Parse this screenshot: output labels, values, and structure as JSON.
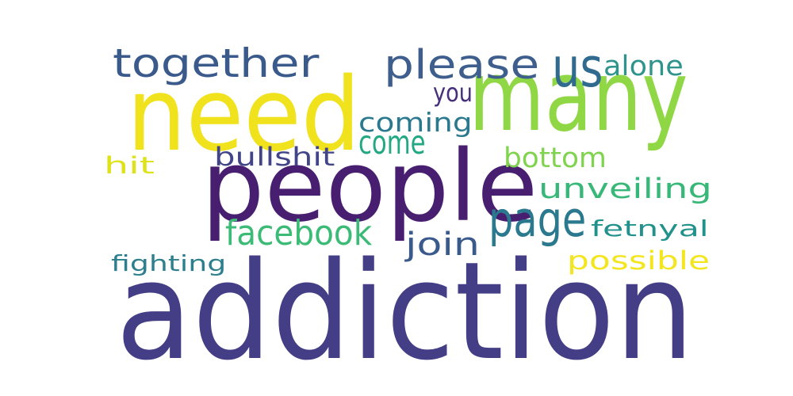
{
  "words": [
    {
      "text": "addiction",
      "color": "#433e85"
    },
    {
      "text": "people",
      "color": "#481f70"
    },
    {
      "text": "need",
      "color": "#f0e21c"
    },
    {
      "text": "many",
      "color": "#8fd744"
    },
    {
      "text": "together",
      "color": "#3b5a8c"
    },
    {
      "text": "please",
      "color": "#3e5e8d"
    },
    {
      "text": "us",
      "color": "#306a8e"
    },
    {
      "text": "alone",
      "color": "#2e948c"
    },
    {
      "text": "you",
      "color": "#46307c"
    },
    {
      "text": "coming",
      "color": "#2a798e"
    },
    {
      "text": "come",
      "color": "#23a884"
    },
    {
      "text": "bullshit",
      "color": "#414487"
    },
    {
      "text": "bottom",
      "color": "#7fd34e"
    },
    {
      "text": "hit",
      "color": "#dde318"
    },
    {
      "text": "unveiling",
      "color": "#37b878"
    },
    {
      "text": "facebook",
      "color": "#3bbb75"
    },
    {
      "text": "page",
      "color": "#2a798e"
    },
    {
      "text": "join",
      "color": "#3b5a8c"
    },
    {
      "text": "fetnyal",
      "color": "#21918c"
    },
    {
      "text": "fighting",
      "color": "#2d7f8e"
    },
    {
      "text": "possible",
      "color": "#f3e51e"
    }
  ]
}
